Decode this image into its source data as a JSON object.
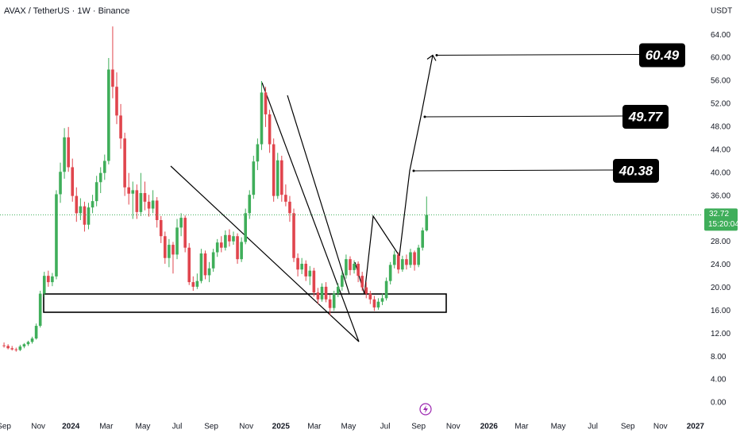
{
  "chart_data": {
    "type": "candlestick",
    "title": "AVAX / TetherUS · 1W · Binance",
    "y_axis_label": "USDT",
    "up_color": "#3fae5a",
    "down_color": "#e0454d",
    "grid": false,
    "ylim": [
      -1.8,
      70.1
    ],
    "yticks": [
      {
        "value": 0,
        "label": "0.00"
      },
      {
        "value": 4,
        "label": "4.00"
      },
      {
        "value": 8,
        "label": "8.00"
      },
      {
        "value": 12,
        "label": "12.00"
      },
      {
        "value": 16,
        "label": "16.00"
      },
      {
        "value": 20,
        "label": "20.00"
      },
      {
        "value": 24,
        "label": "24.00"
      },
      {
        "value": 28,
        "label": "28.00"
      },
      {
        "value": 32,
        "label": "32.00"
      },
      {
        "value": 36,
        "label": "36.00"
      },
      {
        "value": 40,
        "label": "40.00"
      },
      {
        "value": 44,
        "label": "44.00"
      },
      {
        "value": 48,
        "label": "48.00"
      },
      {
        "value": 52,
        "label": "52.00"
      },
      {
        "value": 56,
        "label": "56.00"
      },
      {
        "value": 60,
        "label": "60.00"
      },
      {
        "value": 64,
        "label": "64.00"
      }
    ],
    "xlim": [
      -1,
      173.6
    ],
    "xticks": [
      {
        "value": 0,
        "label": "Sep"
      },
      {
        "value": 8.5,
        "label": "Nov"
      },
      {
        "value": 16.6,
        "label": "2024"
      },
      {
        "value": 25.4,
        "label": "Mar"
      },
      {
        "value": 34.5,
        "label": "May"
      },
      {
        "value": 43,
        "label": "Jul"
      },
      {
        "value": 51.5,
        "label": "Sep"
      },
      {
        "value": 60.2,
        "label": "Nov"
      },
      {
        "value": 68.8,
        "label": "2025"
      },
      {
        "value": 77.1,
        "label": "Mar"
      },
      {
        "value": 85.6,
        "label": "May"
      },
      {
        "value": 94.7,
        "label": "Jul"
      },
      {
        "value": 103,
        "label": "Sep"
      },
      {
        "value": 111.6,
        "label": "Nov"
      },
      {
        "value": 120.5,
        "label": "2026"
      },
      {
        "value": 128.6,
        "label": "Mar"
      },
      {
        "value": 137.7,
        "label": "May"
      },
      {
        "value": 146.3,
        "label": "Jul"
      },
      {
        "value": 155,
        "label": "Sep"
      },
      {
        "value": 163.1,
        "label": "Nov"
      },
      {
        "value": 171.8,
        "label": "2027"
      }
    ],
    "candles": [
      [
        10,
        10.5,
        9.6,
        9.9
      ],
      [
        9.9,
        10.2,
        9.3,
        9.5
      ],
      [
        9.5,
        9.9,
        9.1,
        9.3
      ],
      [
        9.3,
        9.6,
        8.9,
        9.2
      ],
      [
        9.2,
        10.1,
        9.0,
        9.8
      ],
      [
        9.8,
        10.4,
        9.5,
        10.2
      ],
      [
        10.2,
        10.8,
        9.9,
        10.6
      ],
      [
        10.6,
        11.5,
        10.3,
        11.2
      ],
      [
        11.2,
        13.8,
        11.0,
        13.4
      ],
      [
        13.4,
        19.5,
        13.1,
        19.0
      ],
      [
        19.0,
        22.8,
        18.4,
        22.1
      ],
      [
        22.1,
        23.0,
        20.2,
        21.0
      ],
      [
        21.0,
        22.6,
        20.3,
        22.0
      ],
      [
        22.0,
        37.0,
        21.5,
        36.3
      ],
      [
        36.3,
        41.8,
        34.8,
        40.2
      ],
      [
        40.2,
        47.8,
        39.0,
        46.2
      ],
      [
        46.2,
        48.0,
        40.2,
        41.0
      ],
      [
        41.0,
        42.5,
        35.0,
        36.0
      ],
      [
        36.0,
        37.5,
        31.5,
        33.0
      ],
      [
        33.0,
        35.6,
        31.8,
        34.2
      ],
      [
        34.2,
        35.0,
        29.8,
        31.0
      ],
      [
        31.0,
        34.8,
        30.2,
        34.0
      ],
      [
        34.0,
        36.2,
        33.0,
        35.1
      ],
      [
        35.1,
        39.5,
        34.2,
        38.4
      ],
      [
        38.4,
        41.0,
        36.5,
        40.0
      ],
      [
        40.0,
        43.2,
        38.8,
        42.1
      ],
      [
        42.1,
        60.0,
        41.5,
        58.0
      ],
      [
        58.0,
        65.5,
        53.0,
        55.0
      ],
      [
        55.0,
        57.5,
        48.5,
        50.0
      ],
      [
        50.0,
        52.0,
        44.2,
        46.0
      ],
      [
        46.0,
        47.0,
        36.0,
        37.5
      ],
      [
        37.5,
        40.0,
        34.5,
        36.4
      ],
      [
        36.4,
        38.5,
        32.0,
        37.0
      ],
      [
        37.0,
        38.0,
        32.0,
        33.2
      ],
      [
        33.2,
        40.0,
        32.5,
        36.5
      ],
      [
        36.5,
        38.5,
        33.5,
        35.0
      ],
      [
        35.0,
        36.2,
        32.4,
        33.8
      ],
      [
        33.8,
        37.0,
        33.0,
        35.2
      ],
      [
        35.2,
        35.8,
        30.5,
        31.8
      ],
      [
        31.8,
        32.5,
        27.8,
        29.0
      ],
      [
        29.0,
        29.8,
        24.2,
        25.2
      ],
      [
        25.2,
        28.5,
        23.6,
        27.5
      ],
      [
        27.5,
        28.0,
        22.5,
        25.8
      ],
      [
        25.8,
        32.0,
        25.0,
        30.5
      ],
      [
        30.5,
        33.0,
        29.0,
        32.2
      ],
      [
        32.2,
        32.6,
        26.2,
        27.0
      ],
      [
        27.0,
        27.8,
        20.5,
        21.0
      ],
      [
        21.0,
        22.0,
        19.5,
        20.2
      ],
      [
        20.2,
        22.5,
        19.8,
        21.2
      ],
      [
        21.2,
        26.8,
        20.8,
        26.0
      ],
      [
        26.0,
        26.5,
        21.5,
        22.2
      ],
      [
        22.2,
        24.5,
        21.0,
        23.4
      ],
      [
        23.4,
        26.8,
        22.8,
        26.2
      ],
      [
        26.2,
        28.5,
        25.4,
        27.9
      ],
      [
        27.9,
        29.0,
        26.2,
        27.0
      ],
      [
        27.0,
        30.0,
        26.5,
        29.2
      ],
      [
        29.2,
        30.2,
        27.2,
        28.1
      ],
      [
        28.1,
        29.8,
        27.5,
        29.0
      ],
      [
        29.0,
        29.5,
        24.2,
        25.0
      ],
      [
        25.0,
        28.8,
        24.5,
        28.0
      ],
      [
        28.0,
        33.8,
        27.6,
        33.0
      ],
      [
        33.0,
        37.0,
        32.0,
        36.2
      ],
      [
        36.2,
        43.0,
        35.5,
        42.0
      ],
      [
        42.0,
        46.0,
        40.5,
        45.0
      ],
      [
        45.0,
        56.0,
        44.0,
        54.0
      ],
      [
        54.0,
        55.0,
        48.0,
        50.2
      ],
      [
        50.2,
        51.0,
        43.5,
        45.0
      ],
      [
        45.0,
        46.0,
        35.0,
        36.0
      ],
      [
        36.0,
        43.5,
        35.5,
        42.2
      ],
      [
        42.2,
        43.0,
        35.0,
        36.2
      ],
      [
        36.2,
        38.0,
        34.2,
        35.0
      ],
      [
        35.0,
        36.0,
        31.5,
        33.0
      ],
      [
        33.0,
        33.8,
        24.5,
        25.2
      ],
      [
        25.2,
        26.0,
        22.0,
        23.2
      ],
      [
        23.2,
        25.2,
        22.4,
        24.2
      ],
      [
        24.2,
        24.8,
        21.2,
        22.0
      ],
      [
        22.0,
        23.8,
        20.5,
        23.0
      ],
      [
        23.0,
        23.5,
        18.5,
        19.2
      ],
      [
        19.2,
        20.0,
        17.2,
        18.0
      ],
      [
        18.0,
        20.8,
        17.6,
        20.2
      ],
      [
        20.2,
        21.0,
        17.5,
        18.0
      ],
      [
        18.0,
        18.8,
        15.2,
        16.5
      ],
      [
        16.5,
        19.5,
        16.0,
        19.0
      ],
      [
        19.0,
        20.8,
        18.4,
        20.2
      ],
      [
        20.2,
        22.8,
        19.5,
        22.2
      ],
      [
        22.2,
        25.8,
        21.6,
        25.0
      ],
      [
        25.0,
        25.5,
        22.2,
        23.1
      ],
      [
        23.1,
        24.8,
        22.5,
        24.2
      ],
      [
        24.2,
        24.6,
        21.0,
        22.1
      ],
      [
        22.1,
        22.8,
        19.5,
        20.1
      ],
      [
        20.1,
        21.0,
        18.2,
        19.0
      ],
      [
        19.0,
        19.5,
        17.2,
        18.0
      ],
      [
        18.0,
        18.6,
        16.0,
        16.6
      ],
      [
        16.6,
        18.2,
        16.2,
        17.6
      ],
      [
        17.6,
        19.0,
        17.0,
        18.2
      ],
      [
        18.2,
        21.8,
        17.8,
        21.2
      ],
      [
        21.2,
        24.5,
        20.6,
        24.0
      ],
      [
        24.0,
        26.5,
        23.4,
        25.8
      ],
      [
        25.8,
        26.2,
        22.5,
        23.2
      ],
      [
        23.2,
        25.6,
        22.8,
        25.0
      ],
      [
        25.0,
        25.8,
        23.2,
        24.0
      ],
      [
        24.0,
        26.8,
        23.5,
        26.2
      ],
      [
        26.2,
        26.5,
        23.0,
        24.0
      ],
      [
        24.0,
        27.5,
        23.6,
        27.0
      ],
      [
        27.0,
        30.5,
        26.5,
        30.0
      ],
      [
        30.0,
        35.9,
        29.8,
        32.72
      ]
    ],
    "countdown": "15:20:04",
    "targets": [
      60.49,
      49.77,
      40.38
    ]
  }
}
